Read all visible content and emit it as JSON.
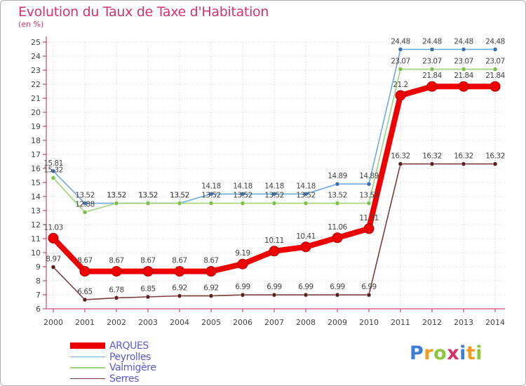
{
  "title": "Evolution du Taux de Taxe d'Habitation",
  "subtitle": "(en %)",
  "brand": {
    "letters": [
      "P",
      "r",
      "o",
      "x",
      "i",
      "t",
      "i"
    ],
    "colors": [
      "#3b7dd8",
      "#f29c1f",
      "#8cc63f",
      "#d6336c",
      "#3b7dd8",
      "#f29c1f",
      "#8cc63f"
    ]
  },
  "chart_data": {
    "type": "line",
    "title": "Evolution du Taux de Taxe d'Habitation",
    "subtitle": "(en %)",
    "xlabel": "",
    "ylabel": "(en %)",
    "x": [
      "2000",
      "2001",
      "2002",
      "2003",
      "2004",
      "2005",
      "2006",
      "2007",
      "2008",
      "2009",
      "2010",
      "2011",
      "2012",
      "2013",
      "2014"
    ],
    "ylim": [
      6,
      25
    ],
    "yticks": [
      6,
      7,
      8,
      9,
      10,
      11,
      12,
      13,
      14,
      15,
      16,
      17,
      18,
      19,
      20,
      21,
      22,
      23,
      24,
      25
    ],
    "grid": true,
    "legend_position": "bottom-left",
    "series": [
      {
        "name": "Peyrolles",
        "color": "#6fa8dc",
        "marker": "#3d6fae",
        "values": [
          15.81,
          13.52,
          13.52,
          13.52,
          13.52,
          14.18,
          14.18,
          14.18,
          14.18,
          14.89,
          14.89,
          24.48,
          24.48,
          24.48,
          24.48
        ],
        "labels": [
          "15.81",
          "13.52",
          "13.52",
          "13.52",
          "13.52",
          "14.18",
          "14.18",
          "14.18",
          "14.18",
          "14.89",
          "14.89",
          "24.48",
          "24.48",
          "24.48",
          "24.48"
        ]
      },
      {
        "name": "Valmigère",
        "color": "#9fd37a",
        "marker": "#7cc04a",
        "values": [
          15.32,
          12.88,
          13.52,
          13.52,
          13.52,
          13.52,
          13.52,
          13.52,
          13.52,
          13.52,
          13.52,
          23.07,
          23.07,
          23.07,
          23.07
        ],
        "labels": [
          "15.32",
          "12.88",
          "13.52",
          "13.52",
          "13.52",
          "13.52",
          "13.52",
          "13.52",
          "13.52",
          "13.52",
          "13.52",
          "23.07",
          "23.07",
          "23.07",
          "23.07"
        ]
      },
      {
        "name": "Serres",
        "color": "#7a3b3b",
        "marker": "#5a2020",
        "values": [
          8.97,
          6.65,
          6.78,
          6.85,
          6.92,
          6.92,
          6.99,
          6.99,
          6.99,
          6.99,
          6.99,
          16.32,
          16.32,
          16.32,
          16.32
        ],
        "labels": [
          "8.97",
          "6.65",
          "6.78",
          "6.85",
          "6.92",
          "6.92",
          "6.99",
          "6.99",
          "6.99",
          "6.99",
          "6.99",
          "16.32",
          "16.32",
          "16.32",
          "16.32"
        ]
      },
      {
        "name": "ARQUES",
        "color": "#ee0000",
        "marker": "#ee0000",
        "values": [
          11.03,
          8.67,
          8.67,
          8.67,
          8.67,
          8.67,
          9.19,
          10.11,
          10.41,
          11.06,
          11.71,
          21.2,
          21.84,
          21.84,
          21.84
        ],
        "labels": [
          "11.03",
          "8.67",
          "8.67",
          "8.67",
          "8.67",
          "8.67",
          "9.19",
          "10.11",
          "10.41",
          "11.06",
          "11.71",
          "21.2",
          "21.84",
          "21.84",
          "21.84"
        ]
      }
    ],
    "legend": [
      "ARQUES",
      "Peyrolles",
      "Valmigère",
      "Serres"
    ]
  }
}
